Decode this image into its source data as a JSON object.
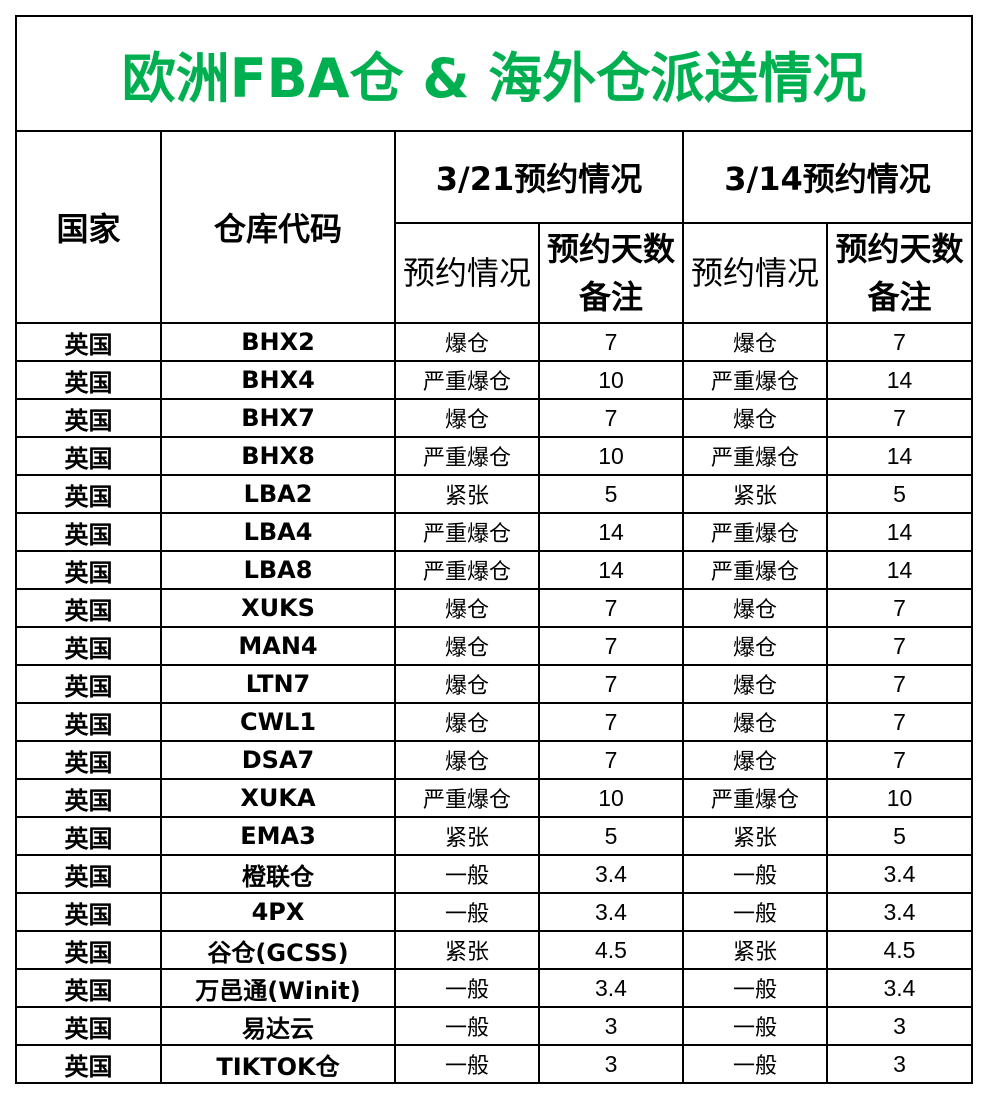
{
  "title": "欧洲FBA仓 & 海外仓派送情况",
  "accent_color": "#00b050",
  "headers": {
    "country": "国家",
    "code": "仓库代码",
    "group1": "3/21预约情况",
    "group2": "3/14预约情况",
    "status": "预约情况",
    "days": "预约天数备注"
  },
  "rows": [
    {
      "country": "英国",
      "code": "BHX2",
      "s1": "爆仓",
      "d1": "7",
      "s2": "爆仓",
      "d2": "7"
    },
    {
      "country": "英国",
      "code": "BHX4",
      "s1": "严重爆仓",
      "d1": "10",
      "s2": "严重爆仓",
      "d2": "14"
    },
    {
      "country": "英国",
      "code": "BHX7",
      "s1": "爆仓",
      "d1": "7",
      "s2": "爆仓",
      "d2": "7"
    },
    {
      "country": "英国",
      "code": "BHX8",
      "s1": "严重爆仓",
      "d1": "10",
      "s2": "严重爆仓",
      "d2": "14"
    },
    {
      "country": "英国",
      "code": "LBA2",
      "s1": "紧张",
      "d1": "5",
      "s2": "紧张",
      "d2": "5"
    },
    {
      "country": "英国",
      "code": "LBA4",
      "s1": "严重爆仓",
      "d1": "14",
      "s2": "严重爆仓",
      "d2": "14"
    },
    {
      "country": "英国",
      "code": "LBA8",
      "s1": "严重爆仓",
      "d1": "14",
      "s2": "严重爆仓",
      "d2": "14"
    },
    {
      "country": "英国",
      "code": "XUKS",
      "s1": "爆仓",
      "d1": "7",
      "s2": "爆仓",
      "d2": "7"
    },
    {
      "country": "英国",
      "code": "MAN4",
      "s1": "爆仓",
      "d1": "7",
      "s2": "爆仓",
      "d2": "7"
    },
    {
      "country": "英国",
      "code": "LTN7",
      "s1": "爆仓",
      "d1": "7",
      "s2": "爆仓",
      "d2": "7"
    },
    {
      "country": "英国",
      "code": "CWL1",
      "s1": "爆仓",
      "d1": "7",
      "s2": "爆仓",
      "d2": "7"
    },
    {
      "country": "英国",
      "code": "DSA7",
      "s1": "爆仓",
      "d1": "7",
      "s2": "爆仓",
      "d2": "7"
    },
    {
      "country": "英国",
      "code": "XUKA",
      "s1": "严重爆仓",
      "d1": "10",
      "s2": "严重爆仓",
      "d2": "10"
    },
    {
      "country": "英国",
      "code": "EMA3",
      "s1": "紧张",
      "d1": "5",
      "s2": "紧张",
      "d2": "5"
    },
    {
      "country": "英国",
      "code": "橙联仓",
      "s1": "一般",
      "d1": "3.4",
      "s2": "一般",
      "d2": "3.4"
    },
    {
      "country": "英国",
      "code": "4PX",
      "s1": "一般",
      "d1": "3.4",
      "s2": "一般",
      "d2": "3.4"
    },
    {
      "country": "英国",
      "code": "谷仓(GCSS)",
      "s1": "紧张",
      "d1": "4.5",
      "s2": "紧张",
      "d2": "4.5"
    },
    {
      "country": "英国",
      "code": "万邑通(Winit)",
      "s1": "一般",
      "d1": "3.4",
      "s2": "一般",
      "d2": "3.4"
    },
    {
      "country": "英国",
      "code": "易达云",
      "s1": "一般",
      "d1": "3",
      "s2": "一般",
      "d2": "3"
    },
    {
      "country": "英国",
      "code": "TIKTOK仓",
      "s1": "一般",
      "d1": "3",
      "s2": "一般",
      "d2": "3"
    }
  ]
}
